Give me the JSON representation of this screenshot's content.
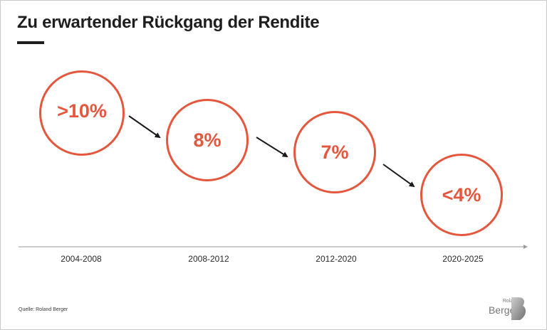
{
  "title": "Zu erwartender Rückgang der Rendite",
  "accent_color": "#e4573d",
  "stages": [
    {
      "value": ">10%",
      "period": "2004-2008"
    },
    {
      "value": "8%",
      "period": "2008-2012"
    },
    {
      "value": "7%",
      "period": "2012-2020"
    },
    {
      "value": "<4%",
      "period": "2020-2025"
    }
  ],
  "source": "Quelle: Roland Berger",
  "logo": {
    "small": "Roland",
    "big": "Berger"
  }
}
